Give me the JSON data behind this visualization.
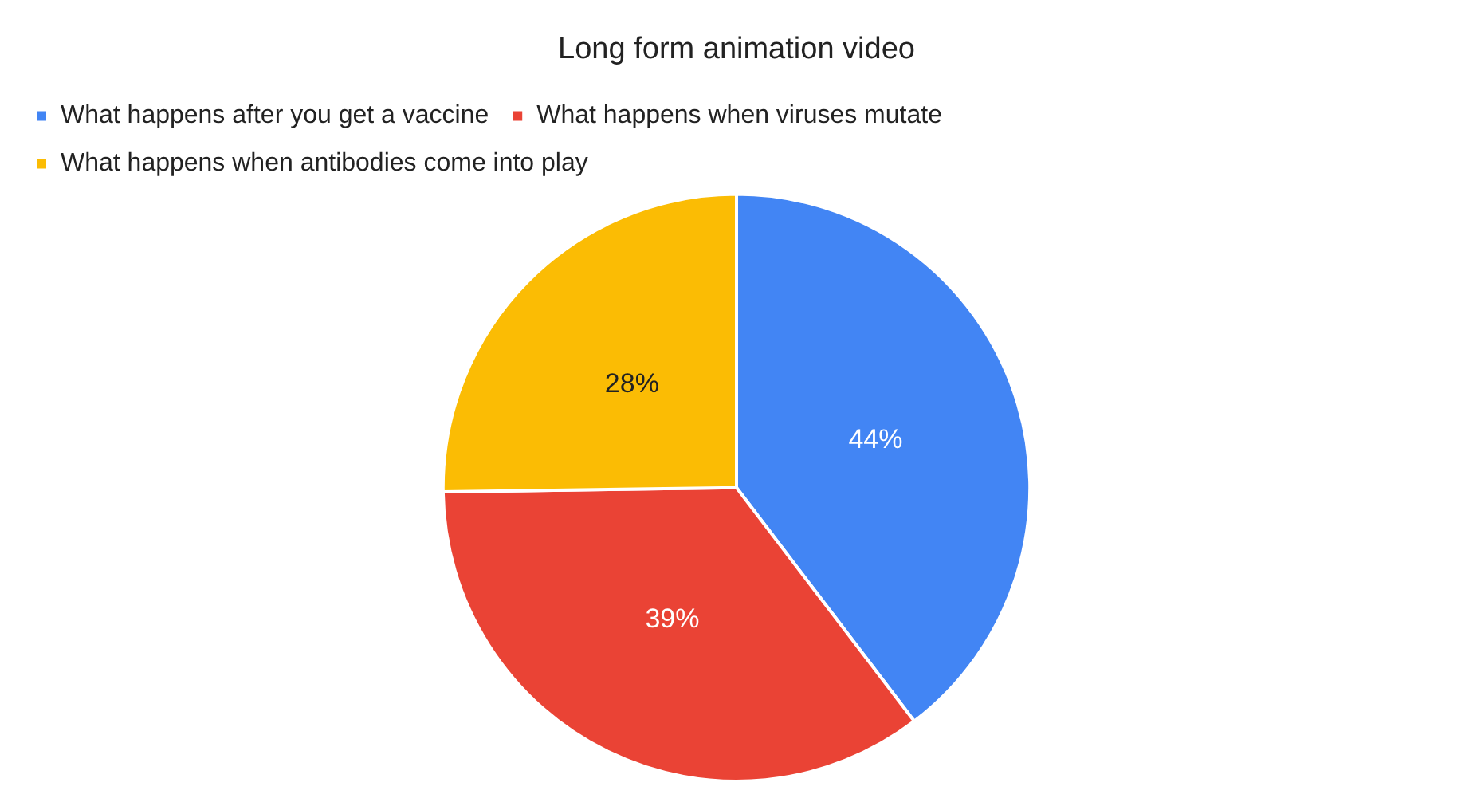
{
  "chart_data": {
    "type": "pie",
    "title": "Long form animation video",
    "categories": [
      "What happens after you get a vaccine",
      "What happens when viruses mutate",
      "What happens when antibodies come into play"
    ],
    "values": [
      44,
      39,
      28
    ],
    "colors": [
      "#4285f4",
      "#ea4335",
      "#fbbc04"
    ],
    "value_labels": [
      "44%",
      "39%",
      "28%"
    ],
    "legend": "top"
  }
}
